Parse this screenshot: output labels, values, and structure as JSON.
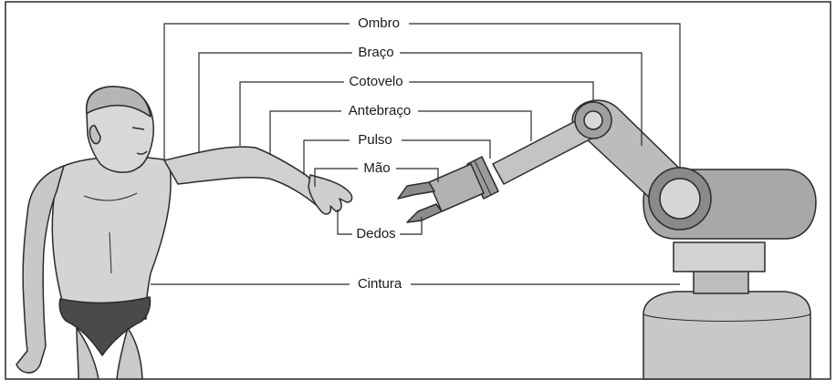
{
  "labels": {
    "ombro": "Ombro",
    "braco": "Braço",
    "cotovelo": "Cotovelo",
    "antebraco": "Antebraço",
    "pulso": "Pulso",
    "mao": "Mão",
    "dedos": "Dedos",
    "cintura": "Cintura"
  },
  "colors": {
    "line": "#2a2a2a",
    "skin": "#d4d4d4",
    "skin_shadow": "#b9b9b9",
    "briefs": "#4a4a4a",
    "robot_light": "#d0d0d0",
    "robot_mid": "#a8a8a8",
    "robot_dark": "#8a8a8a"
  },
  "icons": {
    "human": "human-figure-icon",
    "robot": "robot-arm-icon"
  }
}
